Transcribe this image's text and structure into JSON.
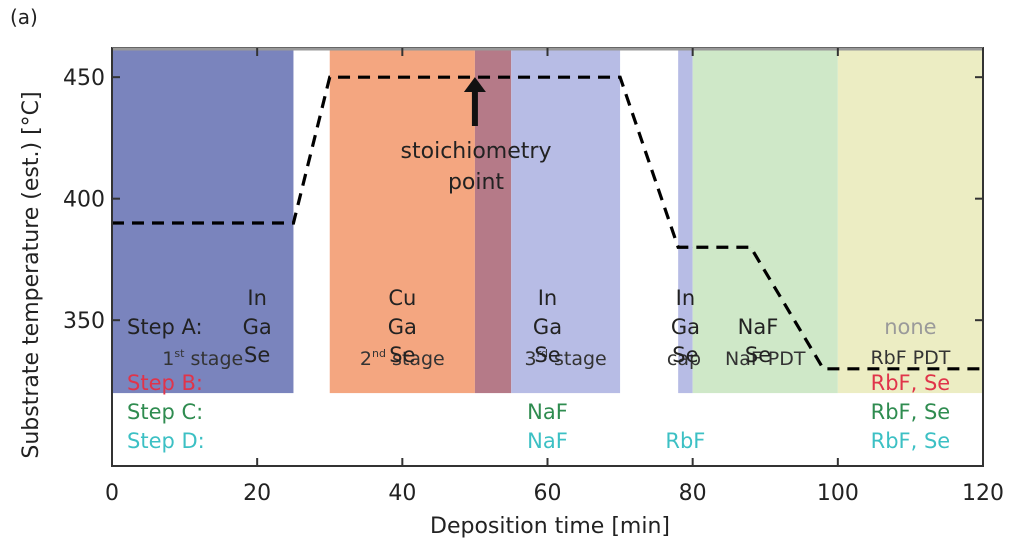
{
  "panel_label": "(a)",
  "chart_data": {
    "type": "line",
    "xlabel": "Deposition time [min]",
    "ylabel": "Substrate temperature (est.) [°C]",
    "xlim": [
      0,
      120
    ],
    "ylim_axis": [
      290,
      462
    ],
    "x_ticks": [
      0,
      20,
      40,
      60,
      80,
      100,
      120
    ],
    "y_ticks": [
      350,
      400,
      450
    ],
    "grid": false,
    "series": [
      {
        "style": "dashed",
        "color": "#000000",
        "x": [
          0,
          25,
          30,
          70,
          78,
          80,
          88,
          98,
          120
        ],
        "y": [
          390,
          390,
          450,
          450,
          380,
          380,
          380,
          330,
          330
        ]
      }
    ],
    "regions": [
      {
        "x0": 0,
        "x1": 25,
        "color": "#7a84bd",
        "label": "1st stage",
        "sup": "st"
      },
      {
        "x0": 30,
        "x1": 50,
        "color": "#f4a680",
        "label": "2nd stage",
        "sup": "nd"
      },
      {
        "x0": 50,
        "x1": 55,
        "color": "#b57a88",
        "label": "",
        "sup": ""
      },
      {
        "x0": 55,
        "x1": 70,
        "color": "#b7bce5",
        "label": "3rd stage",
        "sup": "rd"
      },
      {
        "x0": 78,
        "x1": 80,
        "color": "#b7bce5",
        "label": "cap",
        "sup": ""
      },
      {
        "x0": 80,
        "x1": 100,
        "color": "#cfe8c8",
        "label": "NaF PDT",
        "sup": ""
      },
      {
        "x0": 100,
        "x1": 120,
        "color": "#ecedc3",
        "label": "RbF PDT",
        "sup": ""
      }
    ],
    "region_ymin": 320,
    "annotation": {
      "text_line1": "stoichiometry",
      "text_line2": "point",
      "x": 50,
      "y": 450
    }
  },
  "steps": {
    "step_a": {
      "label": "Step A:",
      "color": "#222222",
      "entries": [
        {
          "x": 20,
          "lines": [
            "In",
            "Ga",
            "Se"
          ]
        },
        {
          "x": 40,
          "lines": [
            "Cu",
            "Ga",
            "Se"
          ]
        },
        {
          "x": 60,
          "lines": [
            "In",
            "Ga",
            "Se"
          ]
        },
        {
          "x": 79,
          "lines": [
            "In",
            "Ga",
            "Se"
          ]
        },
        {
          "x": 89,
          "lines": [
            "NaF",
            "Se"
          ]
        },
        {
          "x": 110,
          "lines": [
            "none"
          ],
          "color": "#9a9a9a"
        }
      ]
    },
    "step_b": {
      "label": "Step B:",
      "color": "#e0344a",
      "entries": [
        {
          "x": 110,
          "text": "RbF, Se"
        }
      ]
    },
    "step_c": {
      "label": "Step C:",
      "color": "#2f8c50",
      "entries": [
        {
          "x": 60,
          "text": "NaF"
        },
        {
          "x": 110,
          "text": "RbF, Se"
        }
      ]
    },
    "step_d": {
      "label": "Step D:",
      "color": "#3cc0c4",
      "entries": [
        {
          "x": 60,
          "text": "NaF"
        },
        {
          "x": 79,
          "text": "RbF"
        },
        {
          "x": 110,
          "text": "RbF, Se"
        }
      ]
    }
  }
}
